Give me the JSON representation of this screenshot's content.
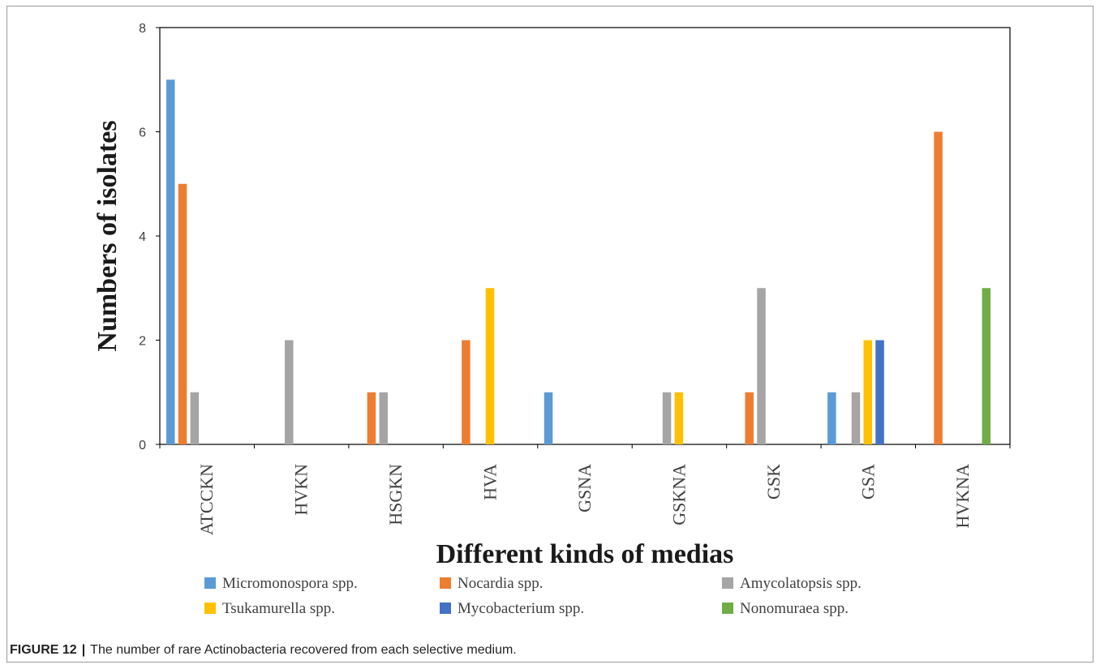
{
  "caption": {
    "label": "FIGURE 12",
    "separator": "|",
    "text": "The number of rare Actinobacteria recovered from each selective medium."
  },
  "chart_data": {
    "type": "bar",
    "xlabel": "Different kinds of medias",
    "ylabel": "Numbers of isolates",
    "ylim": [
      0,
      8
    ],
    "yticks": [
      0,
      2,
      4,
      6,
      8
    ],
    "grid": false,
    "legend_position": "bottom",
    "categories": [
      "ATCCKN",
      "HVKN",
      "HSGKN",
      "HVA",
      "GSNA",
      "GSKNA",
      "GSK",
      "GSA",
      "HVKNA"
    ],
    "series": [
      {
        "name": "Micromonospora spp.",
        "color": "#5b9bd5",
        "values": [
          7,
          0,
          0,
          0,
          1,
          0,
          0,
          1,
          0
        ]
      },
      {
        "name": "Nocardia spp.",
        "color": "#ed7d31",
        "values": [
          5,
          0,
          1,
          2,
          0,
          0,
          1,
          0,
          6
        ]
      },
      {
        "name": "Amycolatopsis spp.",
        "color": "#a5a5a5",
        "values": [
          1,
          2,
          1,
          0,
          0,
          1,
          3,
          1,
          0
        ]
      },
      {
        "name": "Tsukamurella spp.",
        "color": "#ffc000",
        "values": [
          0,
          0,
          0,
          3,
          0,
          1,
          0,
          2,
          0
        ]
      },
      {
        "name": "Mycobacterium spp.",
        "color": "#4472c4",
        "values": [
          0,
          0,
          0,
          0,
          0,
          0,
          0,
          2,
          0
        ]
      },
      {
        "name": "Nonomuraea spp.",
        "color": "#70ad47",
        "values": [
          0,
          0,
          0,
          0,
          0,
          0,
          0,
          0,
          3
        ]
      }
    ]
  }
}
